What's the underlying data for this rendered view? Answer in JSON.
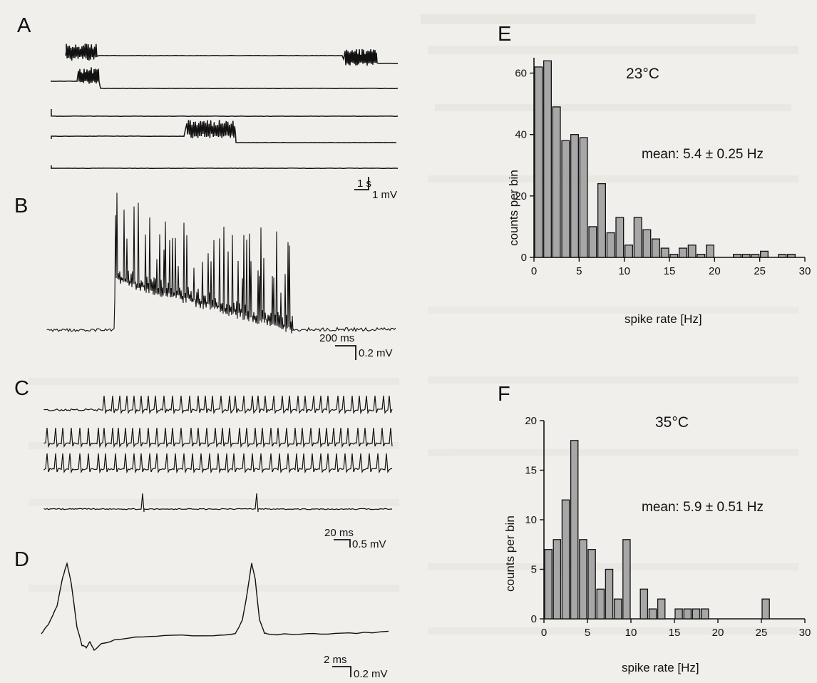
{
  "panels": {
    "A": {
      "letter": "A",
      "scale_time": "1 s",
      "scale_volt": "1 mV"
    },
    "B": {
      "letter": "B",
      "scale_time": "200 ms",
      "scale_volt": "0.2 mV"
    },
    "C": {
      "letter": "C",
      "scale_time": "20 ms",
      "scale_volt": "0.5 mV"
    },
    "D": {
      "letter": "D",
      "scale_time": "2 ms",
      "scale_volt": "0.2 mV"
    },
    "E": {
      "letter": "E"
    },
    "F": {
      "letter": "F"
    }
  },
  "colors": {
    "bar_fill": "#a7a7a7",
    "ink": "#111111",
    "paper": "#f1efeb",
    "ghost_text": "#c9c6c0"
  },
  "chart_data": [
    {
      "id": "E",
      "type": "bar",
      "annotation_temp": "23°C",
      "annotation_mean": "mean: 5.4 ± 0.25 Hz",
      "xlabel": "spike rate [Hz]",
      "ylabel": "counts per bin",
      "xlim": [
        0,
        30
      ],
      "ylim": [
        0,
        65
      ],
      "xticks": [
        "0",
        "5",
        "10",
        "15",
        "20",
        "25",
        "30"
      ],
      "yticks": [
        "0",
        "20",
        "40",
        "60"
      ],
      "bin_width": 1,
      "x": [
        0.5,
        1.5,
        2.5,
        3.5,
        4.5,
        5.5,
        6.5,
        7.5,
        8.5,
        9.5,
        10.5,
        11.5,
        12.5,
        13.5,
        14.5,
        15.5,
        16.5,
        17.5,
        18.5,
        19.5,
        22.5,
        23.5,
        24.5,
        25.5,
        27.5,
        28.5
      ],
      "values": [
        62,
        64,
        49,
        38,
        40,
        39,
        10,
        24,
        8,
        13,
        4,
        13,
        9,
        6,
        3,
        1,
        3,
        4,
        1,
        4,
        1,
        1,
        1,
        2,
        1,
        1
      ]
    },
    {
      "id": "F",
      "type": "bar",
      "annotation_temp": "35°C",
      "annotation_mean": "mean: 5.9 ± 0.51 Hz",
      "xlabel": "spike rate [Hz]",
      "ylabel": "counts per bin",
      "xlim": [
        0,
        30
      ],
      "ylim": [
        0,
        20
      ],
      "xticks": [
        "0",
        "5",
        "10",
        "15",
        "20",
        "25",
        "30"
      ],
      "yticks": [
        "0",
        "5",
        "10",
        "15",
        "20"
      ],
      "bin_width": 1,
      "x": [
        0.5,
        1.5,
        2.5,
        3.5,
        4.5,
        5.5,
        6.5,
        7.5,
        8.5,
        9.5,
        11.5,
        12.5,
        13.5,
        15.5,
        16.5,
        17.5,
        18.5,
        25.5
      ],
      "values": [
        7,
        8,
        12,
        18,
        8,
        7,
        3,
        5,
        2,
        8,
        3,
        1,
        2,
        1,
        1,
        1,
        1,
        2
      ]
    }
  ]
}
